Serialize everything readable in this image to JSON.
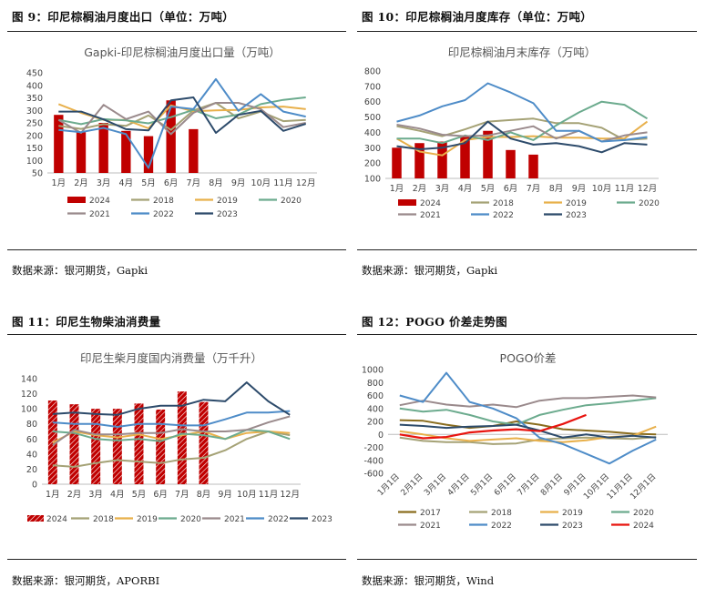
{
  "figures": [
    {
      "title": "图 9：印尼棕榈油月度出口（单位：万吨）",
      "source": "数据来源：银河期货，Gapki",
      "chart_data": {
        "type": "bar+line",
        "title": "Gapki-印尼棕榈油月度出口量（万吨）",
        "categories": [
          "1月",
          "2月",
          "3月",
          "4月",
          "5月",
          "6月",
          "7月",
          "8月",
          "9月",
          "10月",
          "11月",
          "12月"
        ],
        "ylim": [
          50,
          450
        ],
        "yticks": [
          50,
          100,
          150,
          200,
          250,
          300,
          350,
          400,
          450
        ],
        "bar_series": {
          "name": "2024",
          "color": "#c00000",
          "values": [
            282,
            213,
            250,
            218,
            197,
            340,
            225,
            null,
            null,
            null,
            null,
            null
          ]
        },
        "series": [
          {
            "name": "2018",
            "color": "#a5a276",
            "values": [
              238,
              226,
              245,
              238,
              280,
              222,
              300,
              330,
              268,
              295,
              257,
              262
            ]
          },
          {
            "name": "2019",
            "color": "#e8b04b",
            "values": [
              325,
              290,
              262,
              262,
              228,
              320,
              296,
              300,
              302,
              312,
              315,
              305
            ]
          },
          {
            "name": "2020",
            "color": "#6cab8e",
            "values": [
              262,
              245,
              265,
              260,
              248,
              273,
              302,
              268,
              283,
              325,
              342,
              352
            ]
          },
          {
            "name": "2021",
            "color": "#9a8a8c",
            "values": [
              262,
              210,
              322,
              265,
              295,
              205,
              290,
              330,
              330,
              305,
              233,
              250
            ]
          },
          {
            "name": "2022",
            "color": "#4e8cc8",
            "values": [
              222,
              213,
              230,
              205,
              70,
              315,
              305,
              425,
              298,
              365,
              295,
              275
            ]
          },
          {
            "name": "2023",
            "color": "#2d4b6b",
            "values": [
              295,
              295,
              264,
              225,
              220,
              340,
              352,
              210,
              282,
              298,
              218,
              246
            ]
          }
        ],
        "legend": [
          {
            "name": "2024",
            "type": "bar",
            "color": "#c00000"
          },
          {
            "name": "2018",
            "type": "line",
            "color": "#a5a276"
          },
          {
            "name": "2019",
            "type": "line",
            "color": "#e8b04b"
          },
          {
            "name": "2020",
            "type": "line",
            "color": "#6cab8e"
          },
          {
            "name": "2021",
            "type": "line",
            "color": "#9a8a8c"
          },
          {
            "name": "2022",
            "type": "line",
            "color": "#4e8cc8"
          },
          {
            "name": "2023",
            "type": "line",
            "color": "#2d4b6b"
          }
        ]
      }
    },
    {
      "title": "图 10：印尼棕榈油月度库存（单位：万吨）",
      "source": "数据来源：银河期货，Gapki",
      "chart_data": {
        "type": "bar+line",
        "title": "印尼棕榈油月末库存（万吨）",
        "categories": [
          "1月",
          "2月",
          "3月",
          "4月",
          "5月",
          "6月",
          "7月",
          "8月",
          "9月",
          "10月",
          "11月",
          "12月"
        ],
        "ylim": [
          100,
          800
        ],
        "yticks": [
          100,
          200,
          300,
          400,
          500,
          600,
          700,
          800
        ],
        "bar_series": {
          "name": "2024",
          "color": "#c00000",
          "values": [
            300,
            330,
            340,
            375,
            410,
            285,
            255,
            null,
            null,
            null,
            null,
            null
          ]
        },
        "series": [
          {
            "name": "2018",
            "color": "#a5a276",
            "values": [
              440,
              410,
              375,
              420,
              470,
              480,
              490,
              460,
              460,
              430,
              350,
              360
            ]
          },
          {
            "name": "2019",
            "color": "#e8b04b",
            "values": [
              360,
              275,
              250,
              350,
              370,
              370,
              375,
              365,
              365,
              360,
              360,
              470
            ]
          },
          {
            "name": "2020",
            "color": "#6cab8e",
            "values": [
              360,
              360,
              330,
              380,
              350,
              400,
              350,
              445,
              530,
              600,
              580,
              490
            ]
          },
          {
            "name": "2021",
            "color": "#9a8a8c",
            "values": [
              450,
              425,
              385,
              375,
              380,
              410,
              440,
              360,
              410,
              340,
              380,
              400
            ]
          },
          {
            "name": "2022",
            "color": "#4e8cc8",
            "values": [
              470,
              510,
              570,
              610,
              720,
              660,
              590,
              410,
              410,
              340,
              350,
              370
            ]
          },
          {
            "name": "2023",
            "color": "#2d4b6b",
            "values": [
              310,
              290,
              300,
              330,
              470,
              360,
              320,
              330,
              310,
              270,
              330,
              320
            ]
          }
        ],
        "legend": [
          {
            "name": "2024",
            "type": "bar",
            "color": "#c00000"
          },
          {
            "name": "2018",
            "type": "line",
            "color": "#a5a276"
          },
          {
            "name": "2019",
            "type": "line",
            "color": "#e8b04b"
          },
          {
            "name": "2020",
            "type": "line",
            "color": "#6cab8e"
          },
          {
            "name": "2021",
            "type": "line",
            "color": "#9a8a8c"
          },
          {
            "name": "2022",
            "type": "line",
            "color": "#4e8cc8"
          },
          {
            "name": "2023",
            "type": "line",
            "color": "#2d4b6b"
          }
        ]
      }
    },
    {
      "title": "图 11：印尼生物柴油消费量",
      "source": "数据来源：银河期货，APORBI",
      "chart_data": {
        "type": "bar+line",
        "title": "印尼生柴月度国内消费量（万千升）",
        "categories": [
          "1月",
          "2月",
          "3月",
          "4月",
          "5月",
          "6月",
          "7月",
          "8月",
          "9月",
          "10月",
          "11月",
          "12月"
        ],
        "ylim": [
          0,
          140
        ],
        "yticks": [
          0,
          20,
          40,
          60,
          80,
          100,
          120,
          140
        ],
        "bar_series": {
          "name": "2024",
          "color": "#c00000",
          "hatched": true,
          "values": [
            111,
            106,
            100,
            100,
            107,
            99,
            123,
            109,
            null,
            null,
            null,
            null
          ]
        },
        "series": [
          {
            "name": "2018",
            "color": "#a5a276",
            "values": [
              25,
              23,
              28,
              32,
              30,
              28,
              33,
              35,
              45,
              60,
              70,
              65
            ]
          },
          {
            "name": "2019",
            "color": "#e8b04b",
            "values": [
              55,
              70,
              65,
              62,
              66,
              60,
              65,
              70,
              60,
              68,
              70,
              68
            ]
          },
          {
            "name": "2020",
            "color": "#6cab8e",
            "values": [
              70,
              68,
              60,
              58,
              60,
              57,
              67,
              65,
              60,
              72,
              70,
              60
            ]
          },
          {
            "name": "2021",
            "color": "#9a8a8c",
            "values": [
              52,
              72,
              66,
              66,
              68,
              68,
              73,
              70,
              70,
              72,
              82,
              90
            ]
          },
          {
            "name": "2022",
            "color": "#4e8cc8",
            "values": [
              82,
              80,
              80,
              76,
              80,
              80,
              78,
              78,
              86,
              95,
              95,
              97
            ]
          },
          {
            "name": "2023",
            "color": "#2d4b6b",
            "values": [
              93,
              95,
              93,
              92,
              100,
              104,
              104,
              112,
              110,
              135,
              110,
              92
            ]
          }
        ],
        "legend": [
          {
            "name": "2024",
            "type": "hatched-bar",
            "color": "#c00000"
          },
          {
            "name": "2018",
            "type": "line",
            "color": "#a5a276"
          },
          {
            "name": "2019",
            "type": "line",
            "color": "#e8b04b"
          },
          {
            "name": "2020",
            "type": "line",
            "color": "#6cab8e"
          },
          {
            "name": "2021",
            "type": "line",
            "color": "#9a8a8c"
          },
          {
            "name": "2022",
            "type": "line",
            "color": "#4e8cc8"
          },
          {
            "name": "2023",
            "type": "line",
            "color": "#2d4b6b"
          }
        ]
      }
    },
    {
      "title": "图 12：POGO 价差走势图",
      "source": "数据来源：银河期货，Wind",
      "chart_data": {
        "type": "line",
        "title": "POGO价差",
        "categories": [
          "1月1日",
          "2月1日",
          "3月1日",
          "4月1日",
          "5月1日",
          "6月1日",
          "7月1日",
          "8月1日",
          "9月1日",
          "10月1日",
          "11月1日",
          "12月1日"
        ],
        "ylim": [
          -600,
          1000
        ],
        "yticks": [
          -600,
          -400,
          -200,
          0,
          200,
          400,
          600,
          800,
          1000
        ],
        "series": [
          {
            "name": "2017",
            "color": "#8a6d1e",
            "values": [
              220,
              210,
              150,
              100,
              130,
              200,
              150,
              80,
              60,
              40,
              10,
              0
            ]
          },
          {
            "name": "2018",
            "color": "#a5a276",
            "values": [
              -50,
              -100,
              -120,
              -120,
              -150,
              -140,
              -80,
              -60,
              -50,
              -60,
              -70,
              -40
            ]
          },
          {
            "name": "2019",
            "color": "#e8b04b",
            "values": [
              50,
              0,
              -60,
              -100,
              -80,
              -60,
              -100,
              -120,
              -90,
              -40,
              -20,
              120
            ]
          },
          {
            "name": "2020",
            "color": "#6cab8e",
            "values": [
              400,
              350,
              380,
              300,
              200,
              150,
              300,
              380,
              450,
              480,
              520,
              560
            ]
          },
          {
            "name": "2021",
            "color": "#9a8a8c",
            "values": [
              450,
              520,
              460,
              430,
              460,
              420,
              520,
              560,
              560,
              580,
              600,
              570
            ]
          },
          {
            "name": "2022",
            "color": "#4e8cc8",
            "values": [
              600,
              500,
              950,
              500,
              400,
              250,
              -50,
              -150,
              -300,
              -450,
              -250,
              -80
            ]
          },
          {
            "name": "2023",
            "color": "#2d4b6b",
            "values": [
              150,
              130,
              100,
              120,
              130,
              150,
              60,
              -50,
              0,
              -50,
              -20,
              -50
            ]
          },
          {
            "name": "2024",
            "color": "#e8140f",
            "values": [
              0,
              -60,
              -40,
              30,
              60,
              80,
              50,
              160,
              300,
              null,
              null,
              null
            ]
          }
        ],
        "legend": [
          {
            "name": "2017",
            "type": "line",
            "color": "#8a6d1e"
          },
          {
            "name": "2018",
            "type": "line",
            "color": "#a5a276"
          },
          {
            "name": "2019",
            "type": "line",
            "color": "#e8b04b"
          },
          {
            "name": "2020",
            "type": "line",
            "color": "#6cab8e"
          },
          {
            "name": "2021",
            "type": "line",
            "color": "#9a8a8c"
          },
          {
            "name": "2022",
            "type": "line",
            "color": "#4e8cc8"
          },
          {
            "name": "2023",
            "type": "line",
            "color": "#2d4b6b"
          },
          {
            "name": "2024",
            "type": "line",
            "color": "#e8140f"
          }
        ]
      }
    }
  ]
}
